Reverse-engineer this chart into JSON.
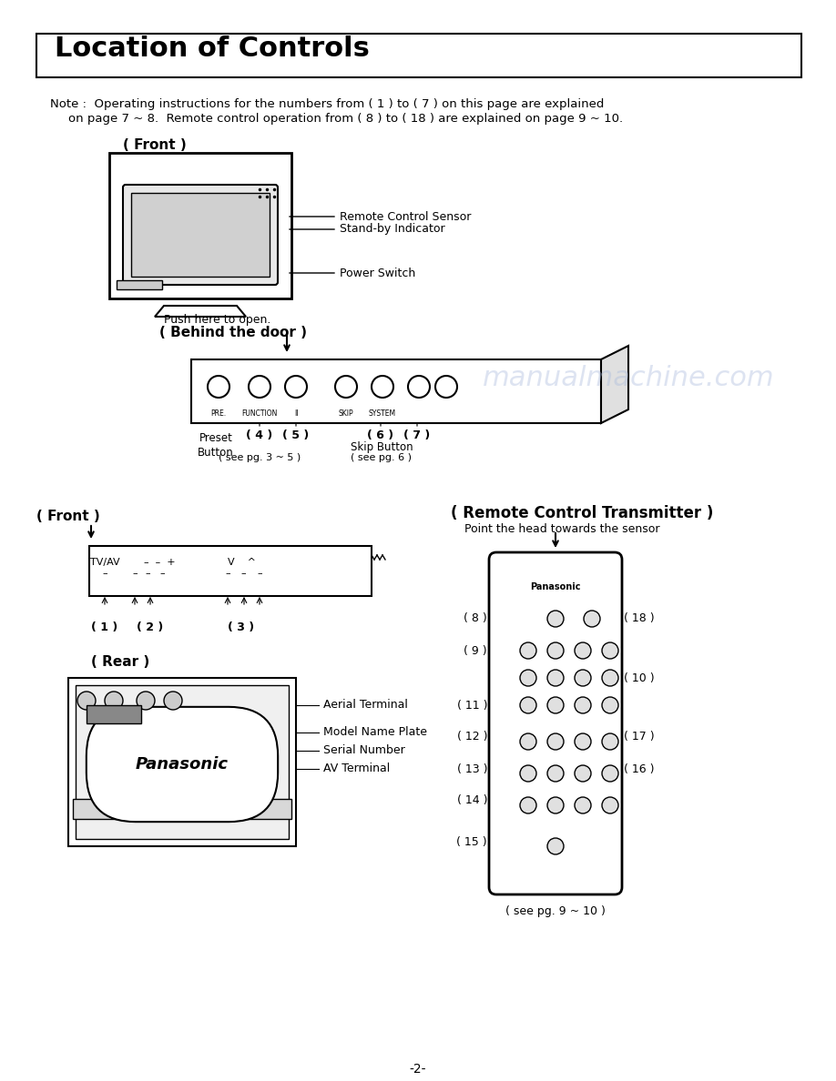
{
  "title": "Location of Controls",
  "page_number": "-2-",
  "note_line1": "Note :  Operating instructions for the numbers from ( 1 ) to ( 7 ) on this page are explained",
  "note_line2": "on page 7 ~ 8.  Remote control operation from ( 8 ) to ( 18 ) are explained on page 9 ~ 10.",
  "front_label": "( Front )",
  "front_label2": "( Front )",
  "rear_label": "( Rear )",
  "remote_label": "( Remote Control Transmitter )",
  "remote_subtext": "Point the head towards the sensor",
  "behind_door_label": "( Behind the door )",
  "push_here": "Push here to open.",
  "labels_right": [
    "Remote Control Sensor",
    "Stand-by Indicator",
    "Power Switch"
  ],
  "labels_bottom_panel": [
    "Preset\nButton",
    "( 4 )",
    "( 5 )",
    "( 6 )",
    "( 7 )"
  ],
  "skip_button": "Skip Button",
  "see_pg3": "( see pg. 3 ~ 5 )",
  "see_pg6": "( see pg. 6 )",
  "see_pg9": "( see pg. 9 ~ 10 )",
  "front_controls": [
    "( 1 )",
    "( 2 )",
    "( 3 )"
  ],
  "front_control_labels": [
    "TV/AV",
    "- +",
    "V  ^"
  ],
  "rear_labels": [
    "Aerial Terminal",
    "Model Name Plate",
    "Serial Number",
    "AV Terminal"
  ],
  "remote_left": [
    "( 8 )",
    "( 9 )",
    "( 11 )",
    "( 12 )",
    "( 13 )",
    "( 14 )",
    "( 15 )"
  ],
  "remote_right": [
    "( 18 )",
    "( 10 )",
    "( 17 )",
    "( 16 )"
  ],
  "watermark": "manualmachine.com",
  "bg_color": "#ffffff",
  "text_color": "#000000",
  "title_box_color": "#000000",
  "watermark_color": "#aabbcc"
}
